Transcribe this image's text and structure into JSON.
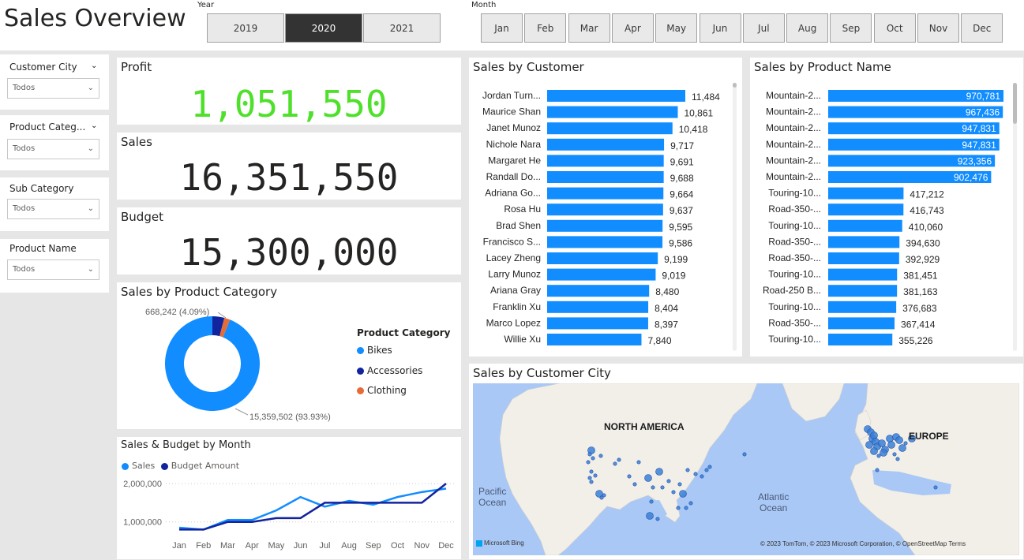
{
  "header": {
    "title": "Sales Overview",
    "year_label": "Year",
    "month_label": "Month",
    "years": [
      "2019",
      "2020",
      "2021"
    ],
    "selected_year": "2020",
    "months": [
      "Jan",
      "Feb",
      "Mar",
      "Apr",
      "May",
      "Jun",
      "Jul",
      "Aug",
      "Sep",
      "Oct",
      "Nov",
      "Dec"
    ]
  },
  "filters": [
    {
      "label": "Customer City",
      "value": "Todos"
    },
    {
      "label": "Product Categ...",
      "value": "Todos"
    },
    {
      "label": "Sub Category",
      "value": "Todos"
    },
    {
      "label": "Product Name",
      "value": "Todos"
    }
  ],
  "kpis": {
    "profit": {
      "label": "Profit",
      "value": "1,051,550",
      "color": "#4fe02b"
    },
    "sales": {
      "label": "Sales",
      "value": "16,351,550"
    },
    "budget": {
      "label": "Budget",
      "value": "15,300,000"
    }
  },
  "colors": {
    "bar": "#118dff",
    "budget": "#12239e",
    "accessories": "#12239e",
    "clothing": "#e66c37",
    "bikes": "#118dff",
    "map_water": "#aac8f5",
    "map_land": "#f2efe9"
  },
  "sales_by_customer": {
    "title": "Sales by Customer",
    "names": [
      "Jordan Turn...",
      "Maurice Shan",
      "Janet Munoz",
      "Nichole Nara",
      "Margaret He",
      "Randall Do...",
      "Adriana Go...",
      "Rosa Hu",
      "Brad Shen",
      "Francisco S...",
      "Lacey Zheng",
      "Larry Munoz",
      "Ariana Gray",
      "Franklin Xu",
      "Marco Lopez",
      "Willie Xu"
    ],
    "values": [
      11484,
      10861,
      10418,
      9717,
      9691,
      9688,
      9664,
      9637,
      9595,
      9586,
      9199,
      9019,
      8480,
      8404,
      8397,
      7840
    ],
    "labels": [
      "11,484",
      "10,861",
      "10,418",
      "9,717",
      "9,691",
      "9,688",
      "9,664",
      "9,637",
      "9,595",
      "9,586",
      "9,199",
      "9,019",
      "8,480",
      "8,404",
      "8,397",
      "7,840"
    ]
  },
  "sales_by_product": {
    "title": "Sales by Product Name",
    "names": [
      "Mountain-2...",
      "Mountain-2...",
      "Mountain-2...",
      "Mountain-2...",
      "Mountain-2...",
      "Mountain-2...",
      "Touring-10...",
      "Road-350-...",
      "Touring-10...",
      "Road-350-...",
      "Road-350-...",
      "Touring-10...",
      "Road-250 B...",
      "Touring-10...",
      "Road-350-...",
      "Touring-10..."
    ],
    "values": [
      970781,
      967436,
      947831,
      947831,
      923356,
      902476,
      417212,
      416743,
      410060,
      394630,
      392929,
      381451,
      381163,
      376683,
      367414,
      355226
    ],
    "labels": [
      "970,781",
      "967,436",
      "947,831",
      "947,831",
      "923,356",
      "902,476",
      "417,212",
      "416,743",
      "410,060",
      "394,630",
      "392,929",
      "381,451",
      "381,163",
      "376,683",
      "367,414",
      "355,226"
    ]
  },
  "sales_by_category": {
    "title": "Sales by Product Category",
    "legend_title": "Product Category",
    "categories": [
      "Bikes",
      "Accessories",
      "Clothing"
    ],
    "values": [
      15359502,
      668242,
      323806
    ],
    "label_large": "15,359,502 (93.93%)",
    "label_small": "668,242 (4.09%)"
  },
  "chart_data": {
    "type": "line",
    "title": "Sales & Budget by Month",
    "categories": [
      "Jan",
      "Feb",
      "Mar",
      "Apr",
      "May",
      "Jun",
      "Jul",
      "Aug",
      "Sep",
      "Oct",
      "Nov",
      "Dec"
    ],
    "series": [
      {
        "name": "Sales",
        "values": [
          850000,
          800000,
          1050000,
          1050000,
          1300000,
          1650000,
          1400000,
          1550000,
          1450000,
          1650000,
          1780000,
          1870000
        ]
      },
      {
        "name": "Budget Amount",
        "values": [
          800000,
          800000,
          1000000,
          1000000,
          1100000,
          1100000,
          1500000,
          1500000,
          1500000,
          1500000,
          1500000,
          2000000
        ]
      }
    ],
    "y_ticks": [
      "2,000,000",
      "1,000,000"
    ],
    "ylim": [
      500000,
      2250000
    ]
  },
  "map": {
    "title": "Sales by Customer City",
    "labels": {
      "north_america": "NORTH AMERICA",
      "europe": "EUROPE",
      "pacific": "Pacific",
      "pacific2": "Ocean",
      "atlantic": "Atlantic",
      "atlantic2": "Ocean"
    },
    "attribution": "© 2023 TomTom, © 2023 Microsoft Corporation, © OpenStreetMap  Terms",
    "bing": "Microsoft Bing"
  }
}
